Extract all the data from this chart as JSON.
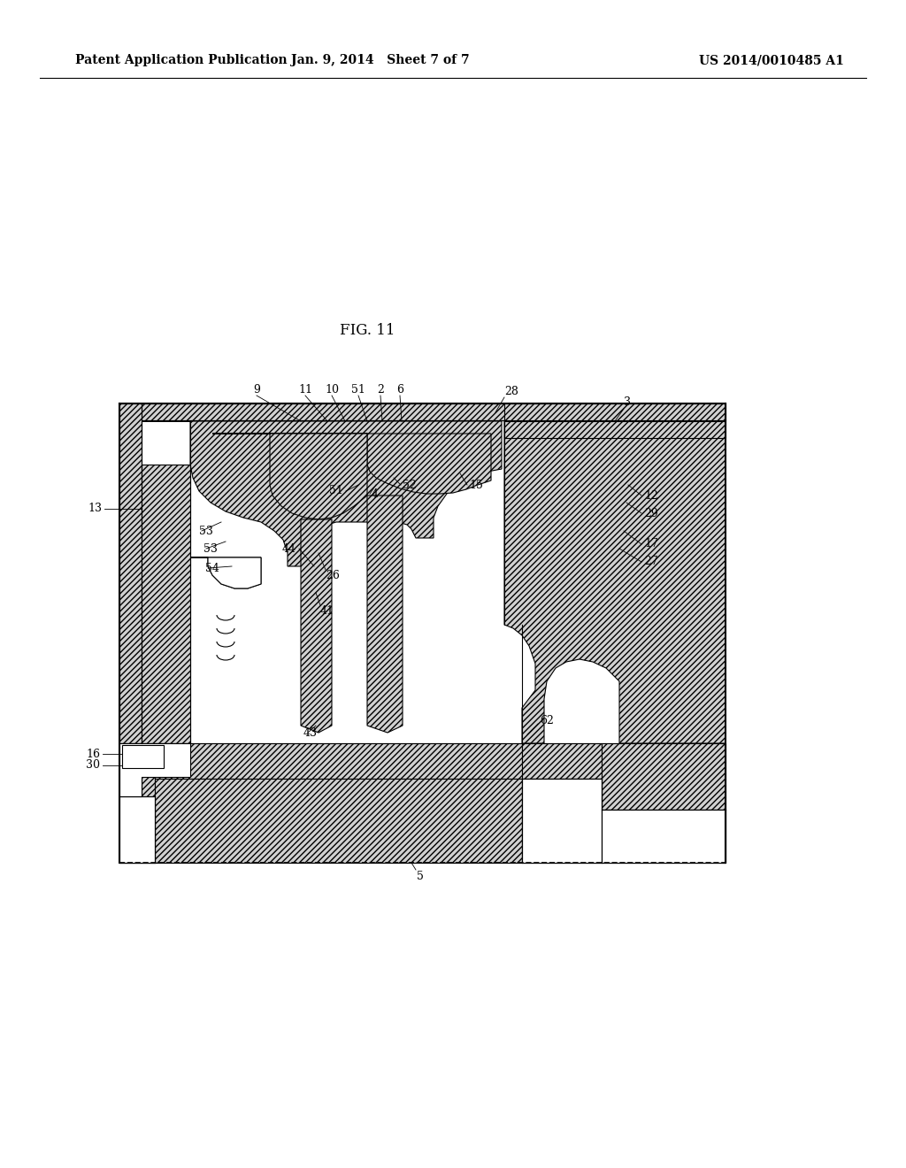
{
  "header_left": "Patent Application Publication",
  "header_center": "Jan. 9, 2014   Sheet 7 of 7",
  "header_right": "US 2014/0010485 A1",
  "title": "FIG. 11",
  "bg_color": "#ffffff",
  "line_color": "#000000",
  "hatch_fc": "#d0d0d0",
  "hatch_ec": "#000000",
  "hatch_style": "/////",
  "label_fs": 9,
  "header_fs": 10,
  "title_fs": 12
}
